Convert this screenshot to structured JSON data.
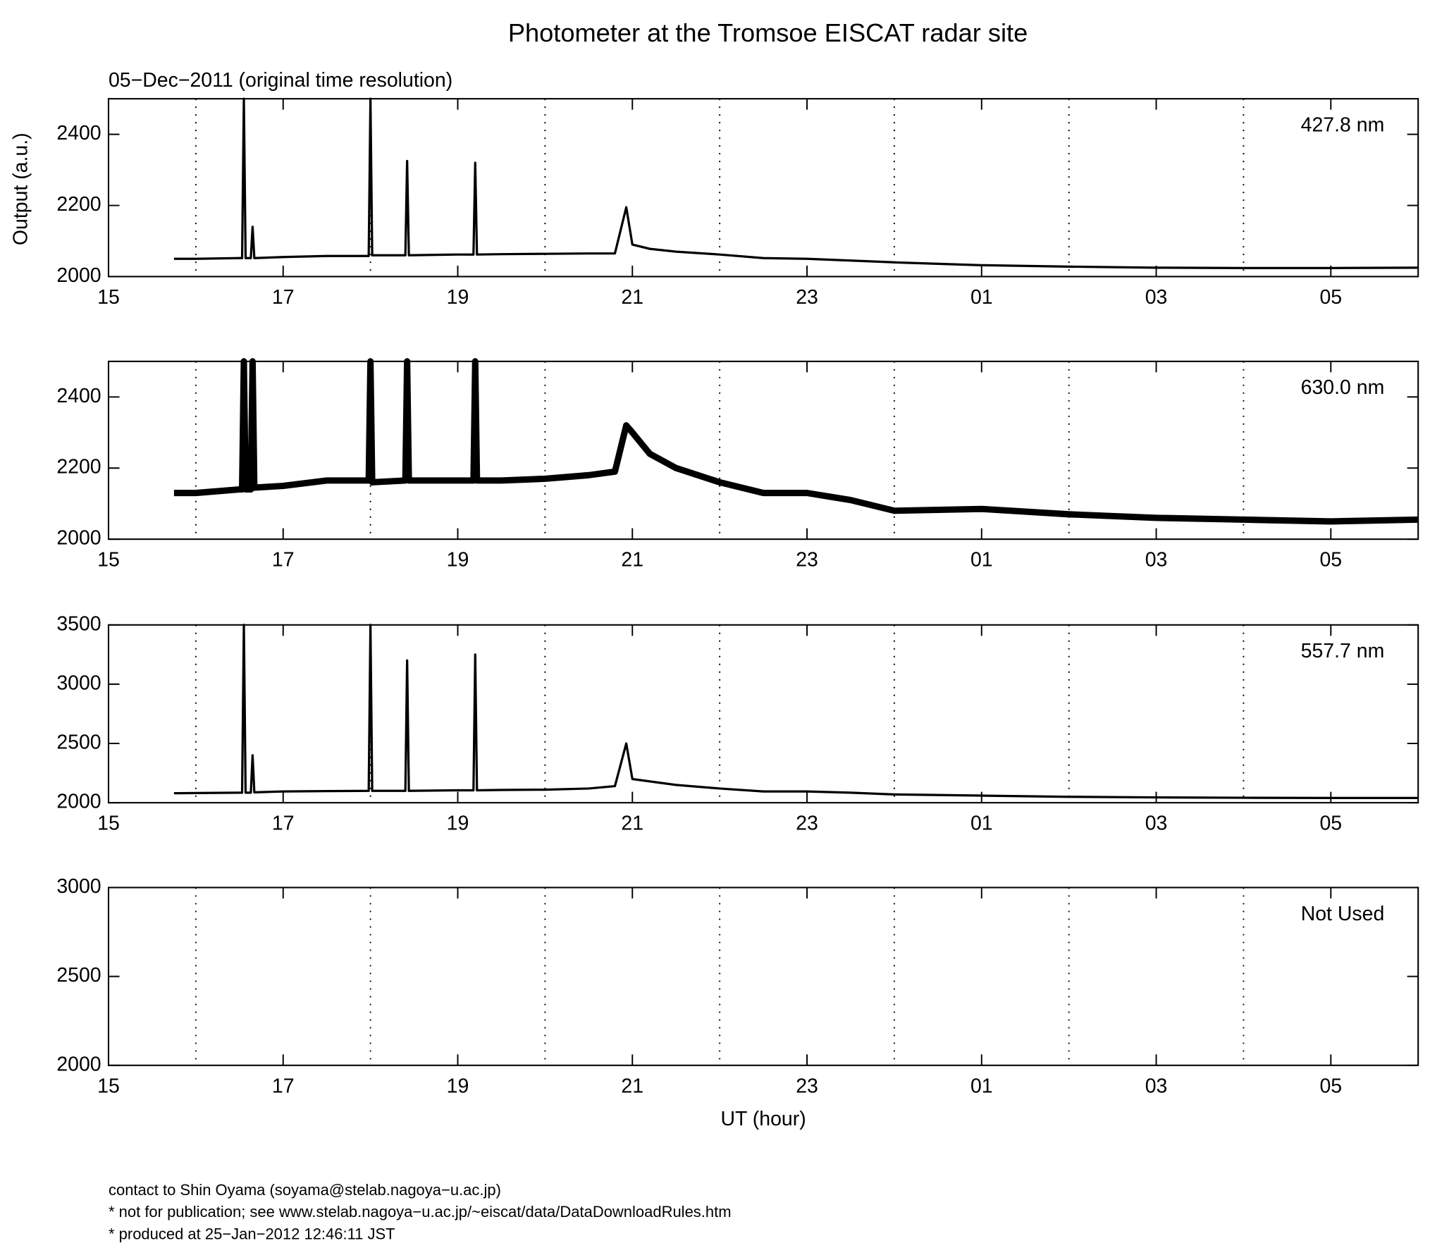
{
  "chart_data": [
    {
      "type": "line",
      "title": "Photometer at the Tromsoe EISCAT radar site",
      "subtitle": "05−Dec−2011 (original time resolution)",
      "y_label": "Output (a.u.)",
      "label": "427.8 nm",
      "xlim": [
        15,
        30
      ],
      "xticks": [
        15,
        17,
        19,
        21,
        23,
        {
          "value": 25,
          "label": "01"
        },
        {
          "value": 27,
          "label": "03"
        },
        {
          "value": 29,
          "label": "05"
        }
      ],
      "xgrid": [
        16,
        18,
        20,
        22,
        24,
        26,
        28
      ],
      "ylim": [
        2000,
        2500
      ],
      "yticks": [
        2000,
        2200,
        2400
      ],
      "series": [
        {
          "color": "#000000",
          "x": [
            15.75,
            16,
            16.5,
            16.53,
            16.55,
            16.57,
            16.63,
            16.65,
            16.67,
            17,
            17.5,
            17.98,
            18,
            18.02,
            18.4,
            18.42,
            18.44,
            19,
            19.18,
            19.2,
            19.22,
            19.5,
            20,
            20.5,
            20.8,
            20.93,
            21,
            21.2,
            21.5,
            22,
            22.5,
            23,
            23.5,
            24,
            25,
            26,
            27,
            28,
            29,
            30
          ],
          "values": [
            2050,
            2050,
            2052,
            2052,
            2500,
            2052,
            2052,
            2140,
            2052,
            2055,
            2058,
            2058,
            2500,
            2060,
            2060,
            2325,
            2060,
            2062,
            2062,
            2320,
            2062,
            2063,
            2064,
            2065,
            2065,
            2195,
            2090,
            2078,
            2070,
            2062,
            2052,
            2050,
            2045,
            2040,
            2032,
            2028,
            2025,
            2024,
            2024,
            2025
          ]
        }
      ]
    },
    {
      "type": "line",
      "label": "630.0 nm",
      "xlim": [
        15,
        30
      ],
      "xticks": [
        15,
        17,
        19,
        21,
        23,
        {
          "value": 25,
          "label": "01"
        },
        {
          "value": 27,
          "label": "03"
        },
        {
          "value": 29,
          "label": "05"
        }
      ],
      "xgrid": [
        16,
        18,
        20,
        22,
        24,
        26,
        28
      ],
      "ylim": [
        2000,
        2500
      ],
      "yticks": [
        2000,
        2200,
        2400
      ],
      "series": [
        {
          "color": "#000000",
          "x": [
            15.75,
            16,
            16.5,
            16.53,
            16.55,
            16.57,
            16.63,
            16.65,
            16.67,
            17,
            17.5,
            17.98,
            18,
            18.02,
            18.4,
            18.42,
            18.44,
            19,
            19.18,
            19.2,
            19.22,
            19.5,
            20,
            20.5,
            20.8,
            20.93,
            21,
            21.2,
            21.5,
            22,
            22.5,
            23,
            23.5,
            24,
            25,
            26,
            27,
            28,
            29,
            30
          ],
          "values": [
            2130,
            2130,
            2140,
            2140,
            2500,
            2140,
            2140,
            2500,
            2145,
            2150,
            2165,
            2165,
            2500,
            2160,
            2165,
            2500,
            2165,
            2165,
            2165,
            2500,
            2165,
            2165,
            2170,
            2180,
            2190,
            2320,
            2300,
            2240,
            2200,
            2160,
            2130,
            2130,
            2110,
            2080,
            2085,
            2070,
            2060,
            2055,
            2050,
            2055
          ]
        }
      ]
    },
    {
      "type": "line",
      "label": "557.7 nm",
      "xlim": [
        15,
        30
      ],
      "xticks": [
        15,
        17,
        19,
        21,
        23,
        {
          "value": 25,
          "label": "01"
        },
        {
          "value": 27,
          "label": "03"
        },
        {
          "value": 29,
          "label": "05"
        }
      ],
      "xgrid": [
        16,
        18,
        20,
        22,
        24,
        26,
        28
      ],
      "ylim": [
        2000,
        3500
      ],
      "yticks": [
        2000,
        2500,
        3000,
        3500
      ],
      "series": [
        {
          "color": "#000000",
          "x": [
            15.75,
            16,
            16.5,
            16.53,
            16.55,
            16.57,
            16.63,
            16.65,
            16.67,
            17,
            17.5,
            17.98,
            18,
            18.02,
            18.4,
            18.42,
            18.44,
            19,
            19.18,
            19.2,
            19.22,
            19.5,
            20,
            20.5,
            20.8,
            20.93,
            21,
            21.2,
            21.5,
            22,
            22.5,
            23,
            23.5,
            24,
            25,
            26,
            27,
            28,
            29,
            30
          ],
          "values": [
            2080,
            2082,
            2085,
            2085,
            3500,
            2085,
            2085,
            2400,
            2088,
            2095,
            2098,
            2100,
            3500,
            2100,
            2100,
            3200,
            2100,
            2105,
            2105,
            3250,
            2105,
            2108,
            2110,
            2120,
            2140,
            2500,
            2200,
            2180,
            2150,
            2120,
            2095,
            2095,
            2085,
            2070,
            2060,
            2050,
            2045,
            2042,
            2040,
            2040
          ]
        }
      ]
    },
    {
      "type": "line",
      "label": "Not Used",
      "x_label": "UT (hour)",
      "xlim": [
        15,
        30
      ],
      "xticks": [
        15,
        17,
        19,
        21,
        23,
        {
          "value": 25,
          "label": "01"
        },
        {
          "value": 27,
          "label": "03"
        },
        {
          "value": 29,
          "label": "05"
        }
      ],
      "xgrid": [
        16,
        18,
        20,
        22,
        24,
        26,
        28
      ],
      "ylim": [
        2000,
        3000
      ],
      "yticks": [
        2000,
        2500,
        3000
      ],
      "series": []
    }
  ],
  "footer": [
    "contact to Shin Oyama (soyama@stelab.nagoya−u.ac.jp)",
    "* not for publication; see www.stelab.nagoya−u.ac.jp/~eiscat/data/DataDownloadRules.htm",
    "* produced at 25−Jan−2012 12:46:11 JST"
  ]
}
